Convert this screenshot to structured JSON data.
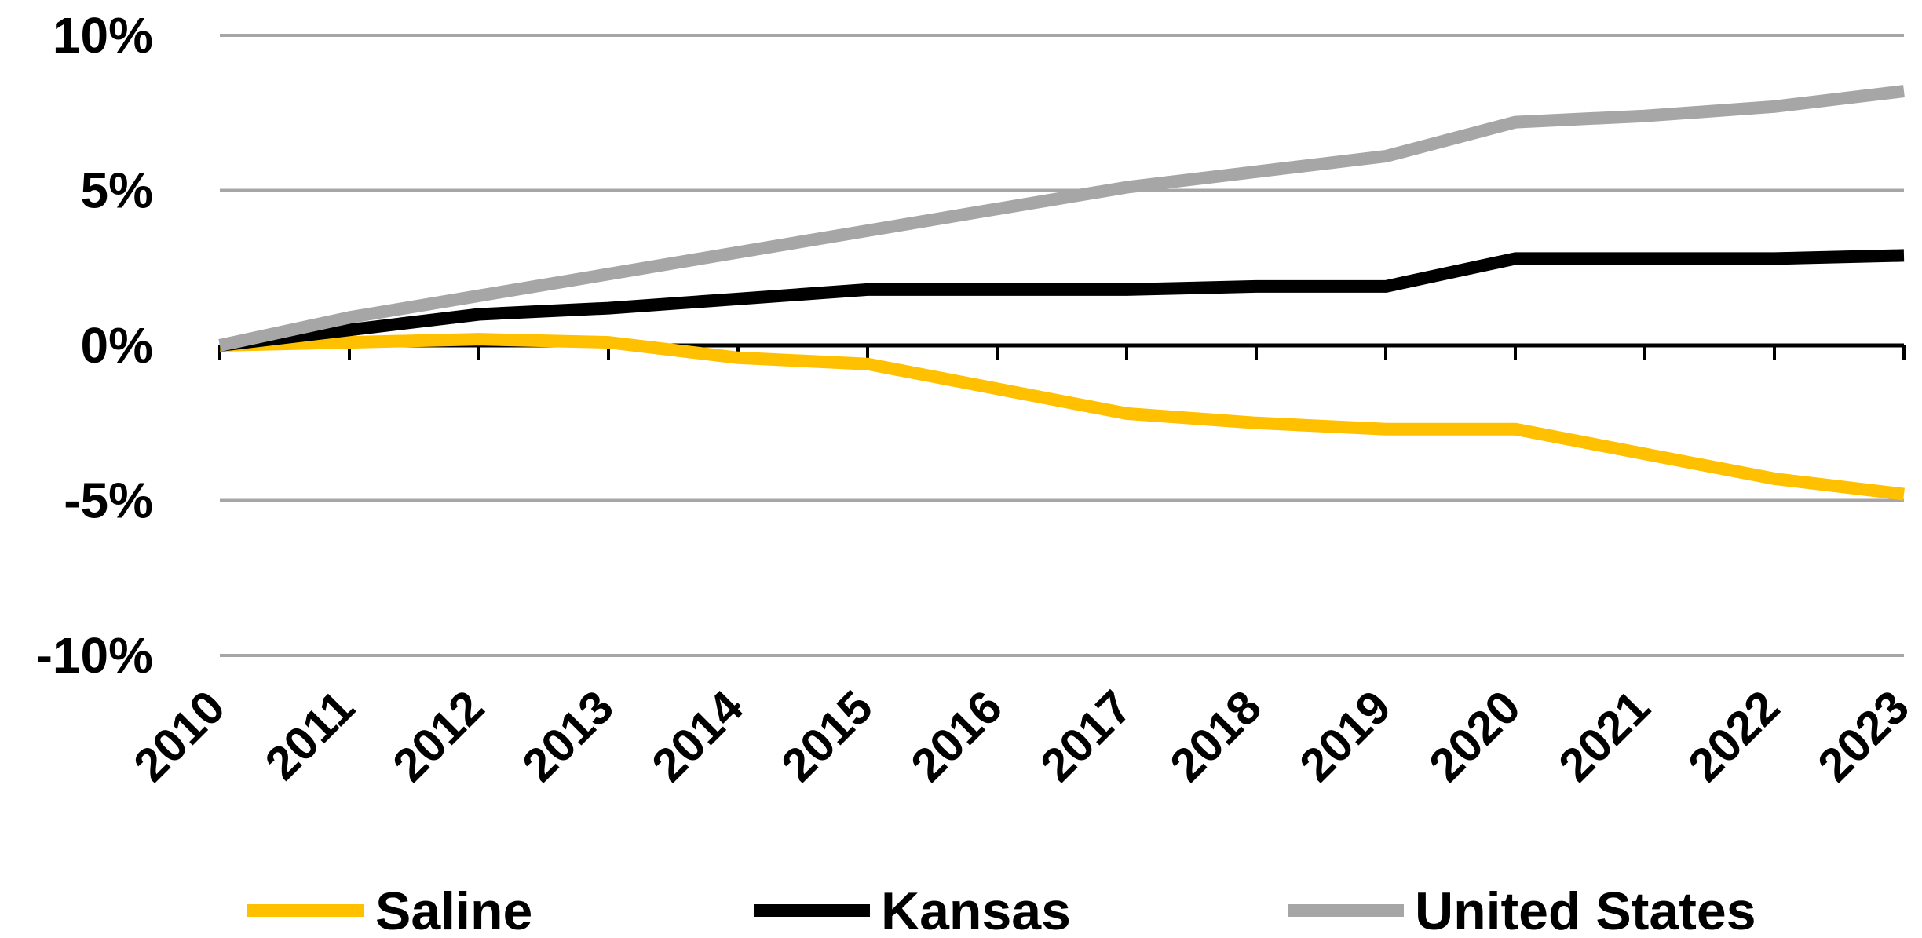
{
  "chart_data": {
    "type": "line",
    "title": "",
    "xlabel": "",
    "ylabel": "",
    "x": [
      "2010",
      "2011",
      "2012",
      "2013",
      "2014",
      "2015",
      "2016",
      "2017",
      "2018",
      "2019",
      "2020",
      "2021",
      "2022",
      "2023"
    ],
    "ylim": [
      -10,
      10
    ],
    "yticks": [
      10,
      5,
      0,
      -5,
      -10
    ],
    "ytick_labels": [
      "10%",
      "5%",
      "0%",
      "-5%",
      "-10%"
    ],
    "grid": true,
    "legend_position": "bottom",
    "series": [
      {
        "name": "Saline",
        "color": "#FFC000",
        "values": [
          0.0,
          0.1,
          0.2,
          0.1,
          -0.4,
          -0.6,
          -1.4,
          -2.2,
          -2.5,
          -2.7,
          -2.7,
          -3.5,
          -4.3,
          -4.8
        ]
      },
      {
        "name": "Kansas",
        "color": "#000000",
        "values": [
          0.0,
          0.5,
          1.0,
          1.2,
          1.5,
          1.8,
          1.8,
          1.8,
          1.9,
          1.9,
          2.8,
          2.8,
          2.8,
          2.9
        ]
      },
      {
        "name": "United States",
        "color": "#A6A6A6",
        "values": [
          0.0,
          0.9,
          1.6,
          2.3,
          3.0,
          3.7,
          4.4,
          5.1,
          5.6,
          6.1,
          7.2,
          7.4,
          7.7,
          8.2
        ]
      }
    ]
  }
}
